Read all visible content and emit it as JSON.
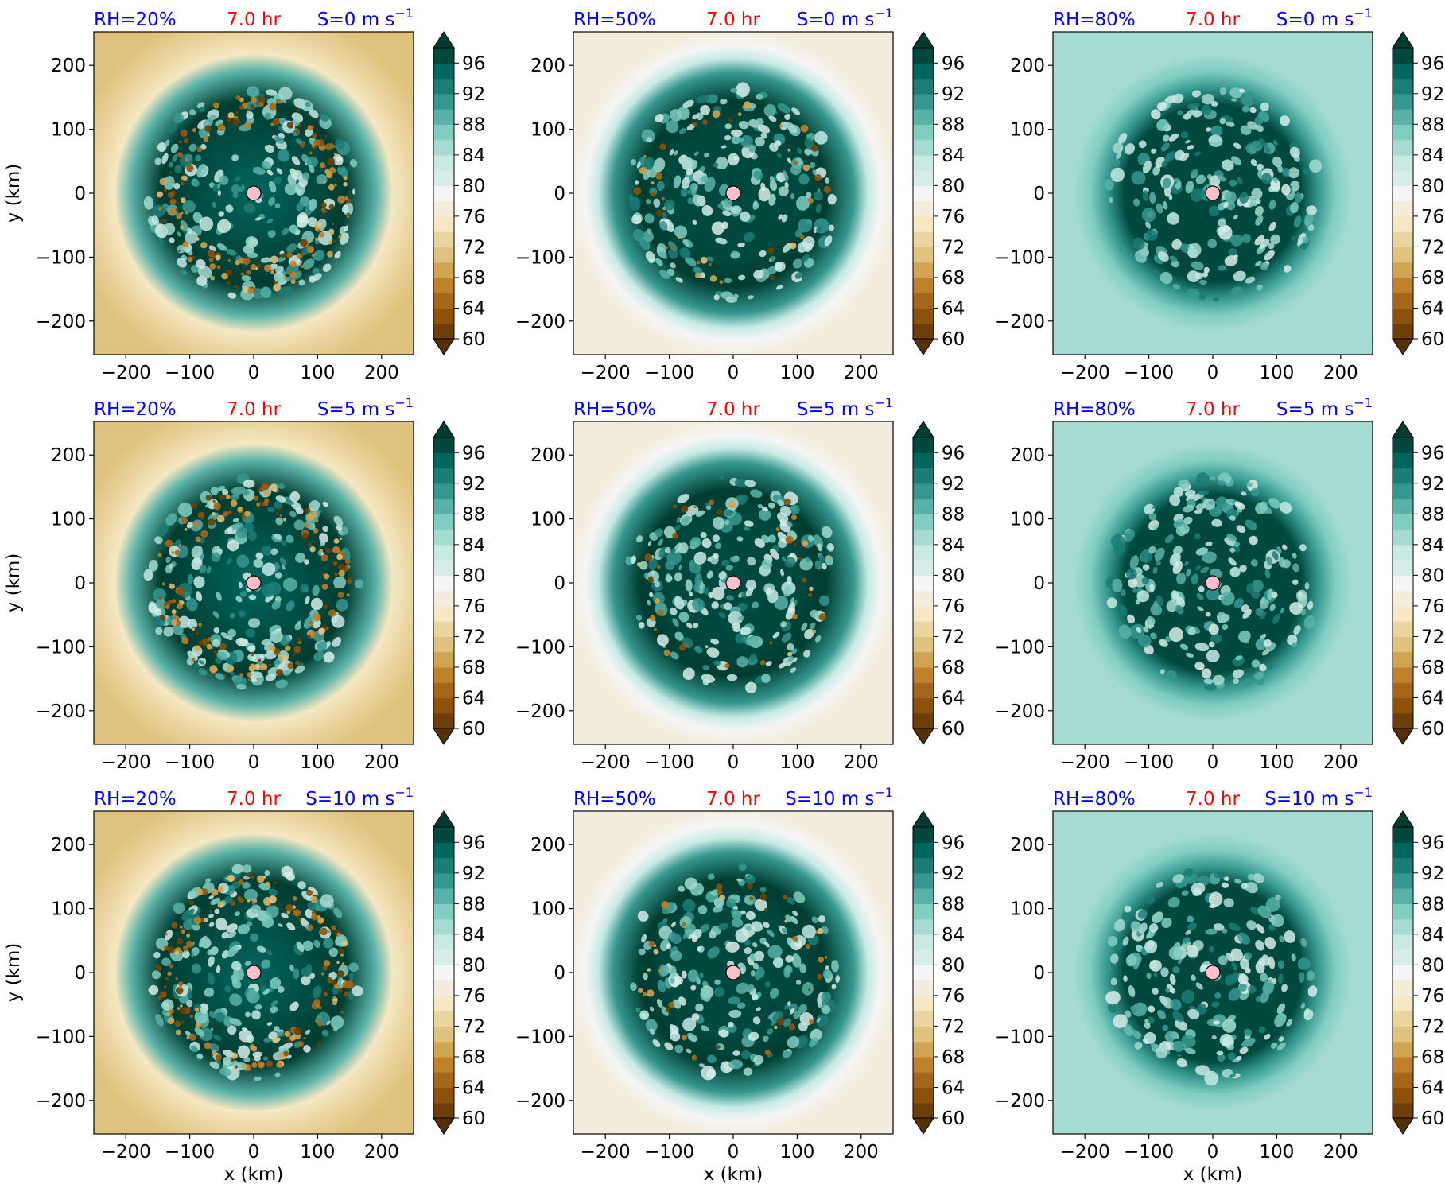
{
  "figure": {
    "colors": {
      "title_left": "#0000ff",
      "title_center": "#ff0000",
      "title_right": "#0000ff",
      "center_marker": "#ffc0cb"
    }
  },
  "chart_data": {
    "type": "heatmap",
    "rows": 3,
    "cols": 3,
    "xlabel": "x (km)",
    "ylabel": "y (km)",
    "xlim": [
      -250,
      250
    ],
    "ylim": [
      -250,
      250
    ],
    "xticks": [
      "−200",
      "−100",
      "0",
      "100",
      "200"
    ],
    "yticks": [
      "200",
      "100",
      "0",
      "−100",
      "−200"
    ],
    "colorbar": {
      "ticks": [
        "96",
        "92",
        "88",
        "84",
        "80",
        "76",
        "72",
        "68",
        "64",
        "60"
      ],
      "range": [
        60,
        98
      ],
      "extend": "both",
      "colors": [
        "#543005",
        "#6d3e08",
        "#8c510a",
        "#a5661b",
        "#bf812d",
        "#cfa453",
        "#dfc27d",
        "#ead49f",
        "#f6e8c3",
        "#f4eddd",
        "#f5f5f5",
        "#d8ede9",
        "#c7eae5",
        "#a6dbd1",
        "#80cdc1",
        "#59b2a8",
        "#35978f",
        "#1c7d75",
        "#01665e",
        "#01493f",
        "#003c30"
      ]
    },
    "panels": [
      {
        "title_left": "RH=20%",
        "title_center": "7.0 hr",
        "title_right": "S=0 m s",
        "title_right_sup": "−1",
        "rh": 20,
        "shear": 0
      },
      {
        "title_left": "RH=50%",
        "title_center": "7.0 hr",
        "title_right": "S=0 m s",
        "title_right_sup": "−1",
        "rh": 50,
        "shear": 0
      },
      {
        "title_left": "RH=80%",
        "title_center": "7.0 hr",
        "title_right": "S=0 m s",
        "title_right_sup": "−1",
        "rh": 80,
        "shear": 0
      },
      {
        "title_left": "RH=20%",
        "title_center": "7.0 hr",
        "title_right": "S=5 m s",
        "title_right_sup": "−1",
        "rh": 20,
        "shear": 5
      },
      {
        "title_left": "RH=50%",
        "title_center": "7.0 hr",
        "title_right": "S=5 m s",
        "title_right_sup": "−1",
        "rh": 50,
        "shear": 5
      },
      {
        "title_left": "RH=80%",
        "title_center": "7.0 hr",
        "title_right": "S=5 m s",
        "title_right_sup": "−1",
        "rh": 80,
        "shear": 5
      },
      {
        "title_left": "RH=20%",
        "title_center": "7.0 hr",
        "title_right": "S=10 m s",
        "title_right_sup": "−1",
        "rh": 20,
        "shear": 10
      },
      {
        "title_left": "RH=50%",
        "title_center": "7.0 hr",
        "title_right": "S=10 m s",
        "title_right_sup": "−1",
        "rh": 50,
        "shear": 10
      },
      {
        "title_left": "RH=80%",
        "title_center": "7.0 hr",
        "title_right": "S=10 m s",
        "title_right_sup": "−1",
        "rh": 80,
        "shear": 10
      }
    ]
  }
}
